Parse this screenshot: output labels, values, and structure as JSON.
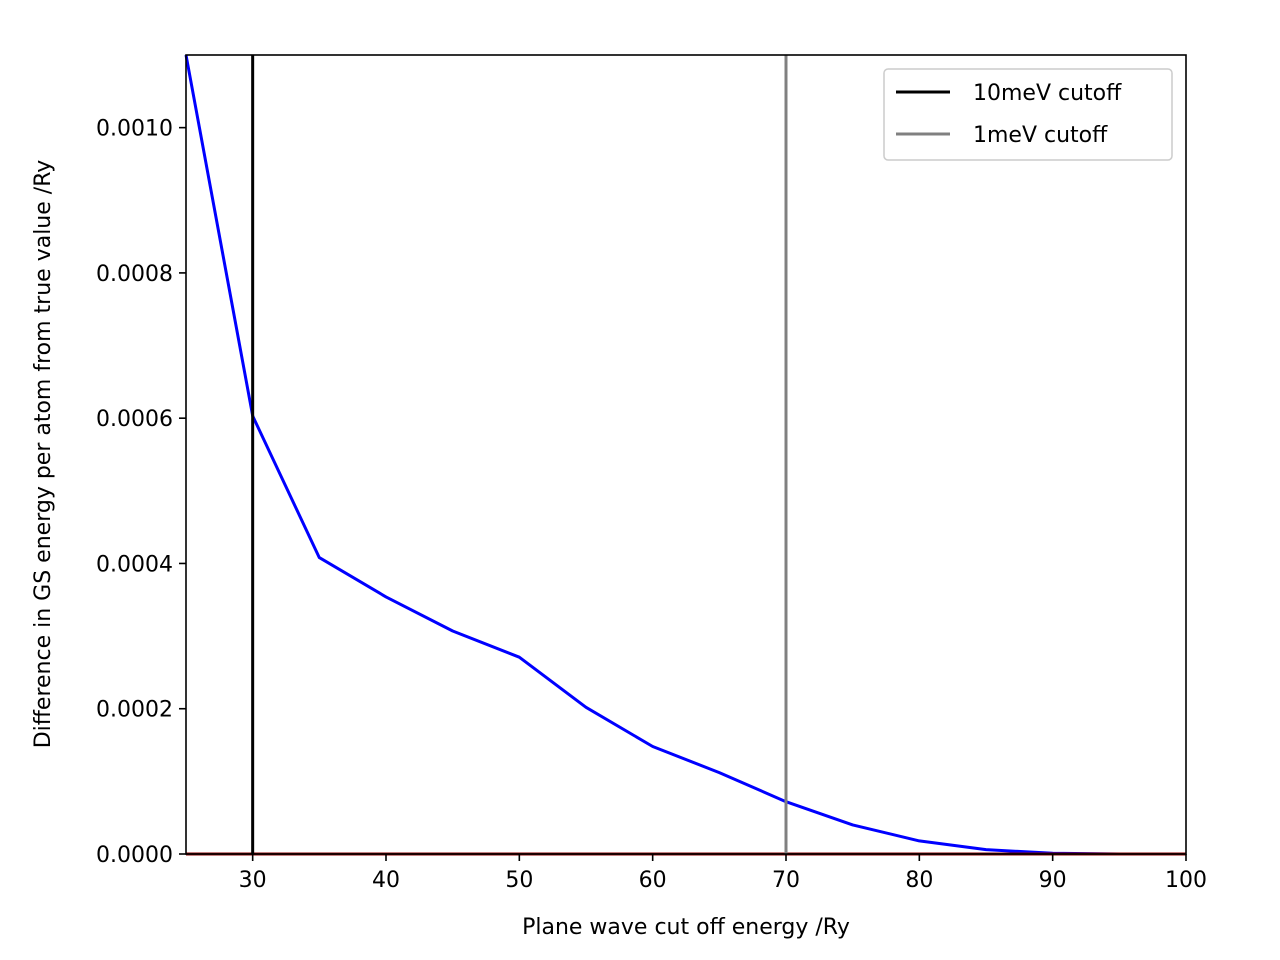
{
  "chart_data": {
    "type": "line",
    "xlabel": "Plane wave cut off energy /Ry",
    "ylabel": "Difference in GS energy per atom from true value /Ry",
    "xlim": [
      25,
      100
    ],
    "ylim": [
      0,
      0.0011
    ],
    "xticks": [
      30,
      40,
      50,
      60,
      70,
      80,
      90,
      100
    ],
    "xtick_labels": [
      "30",
      "40",
      "50",
      "60",
      "70",
      "80",
      "90",
      "100"
    ],
    "yticks": [
      0,
      0.0002,
      0.0004,
      0.0006,
      0.0008,
      0.001
    ],
    "ytick_labels": [
      "0.0000",
      "0.0002",
      "0.0004",
      "0.0006",
      "0.0008",
      "0.0010"
    ],
    "grid": false,
    "legend_position": "top-right",
    "series": [
      {
        "color": "#0000ff",
        "x": [
          25,
          30,
          35,
          40,
          45,
          50,
          55,
          60,
          65,
          70,
          75,
          80,
          85,
          90,
          95,
          100
        ],
        "y": [
          0.0011,
          0.000603,
          0.000408,
          0.000354,
          0.000307,
          0.000271,
          0.000202,
          0.000148,
          0.000112,
          7.2e-05,
          4e-05,
          1.8e-05,
          6e-06,
          1e-06,
          0.0,
          0.0
        ]
      },
      {
        "color": "#8b0000",
        "x": [
          25,
          100
        ],
        "y": [
          0.0,
          0.0
        ]
      }
    ],
    "vlines": [
      {
        "x": 30,
        "color": "#000000",
        "label": "10meV cutoff"
      },
      {
        "x": 70,
        "color": "#808080",
        "label": "1meV cutoff"
      }
    ]
  }
}
